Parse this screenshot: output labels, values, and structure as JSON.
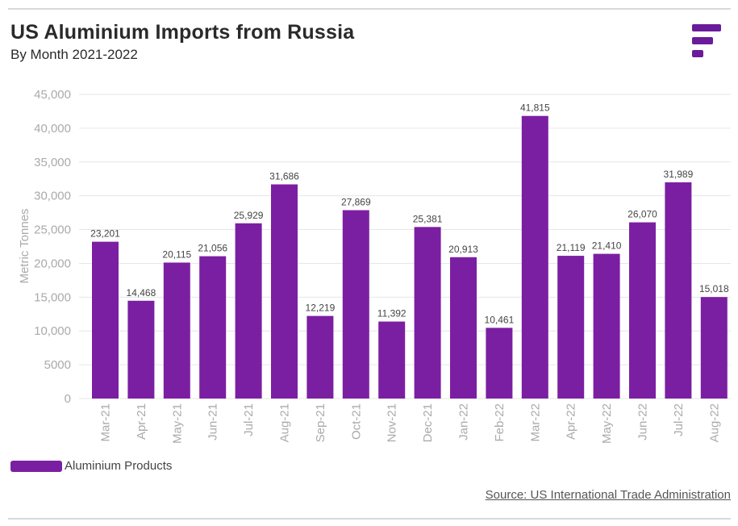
{
  "header": {
    "title": "US Aluminium Imports from Russia",
    "subtitle": "By Month 2021-2022",
    "logo_icon": "brand-logo-icon"
  },
  "legend": {
    "label": "Aluminium Products",
    "color": "#7b1fa2"
  },
  "footer": {
    "source": "Source: US International Trade Administration"
  },
  "colors": {
    "bar": "#7b1fa2",
    "grid": "#e6e6e6",
    "tick": "#aaaaaa",
    "label": "#444444",
    "brand": "#6a1b9a"
  },
  "chart_data": {
    "type": "bar",
    "title": "US Aluminium Imports from Russia",
    "subtitle": "By Month 2021-2022",
    "xlabel": "",
    "ylabel": "Metric Tonnes",
    "ylim": [
      0,
      45000
    ],
    "yticks": [
      0,
      5000,
      10000,
      15000,
      20000,
      25000,
      30000,
      35000,
      40000,
      45000
    ],
    "ytick_labels": [
      "0",
      "5000",
      "10,000",
      "15,000",
      "20,000",
      "25,000",
      "30,000",
      "35,000",
      "40,000",
      "45,000"
    ],
    "grid": true,
    "legend_position": "bottom-left",
    "categories": [
      "Mar-21",
      "Apr-21",
      "May-21",
      "Jun-21",
      "Jul-21",
      "Aug-21",
      "Sep-21",
      "Oct-21",
      "Nov-21",
      "Dec-21",
      "Jan-22",
      "Feb-22",
      "Mar-22",
      "Apr-22",
      "May-22",
      "Jun-22",
      "Jul-22",
      "Aug-22"
    ],
    "series": [
      {
        "name": "Aluminium Products",
        "values": [
          23201,
          14468,
          20115,
          21056,
          25929,
          31686,
          12219,
          27869,
          11392,
          25381,
          20913,
          10461,
          41815,
          21119,
          21410,
          26070,
          31989,
          15018
        ],
        "value_labels": [
          "23,201",
          "14,468",
          "20,115",
          "21,056",
          "25,929",
          "31,686",
          "12,219",
          "27,869",
          "11,392",
          "25,381",
          "20,913",
          "10,461",
          "41,815",
          "21,119",
          "21,410",
          "26,070",
          "31,989",
          "15,018"
        ]
      }
    ]
  }
}
